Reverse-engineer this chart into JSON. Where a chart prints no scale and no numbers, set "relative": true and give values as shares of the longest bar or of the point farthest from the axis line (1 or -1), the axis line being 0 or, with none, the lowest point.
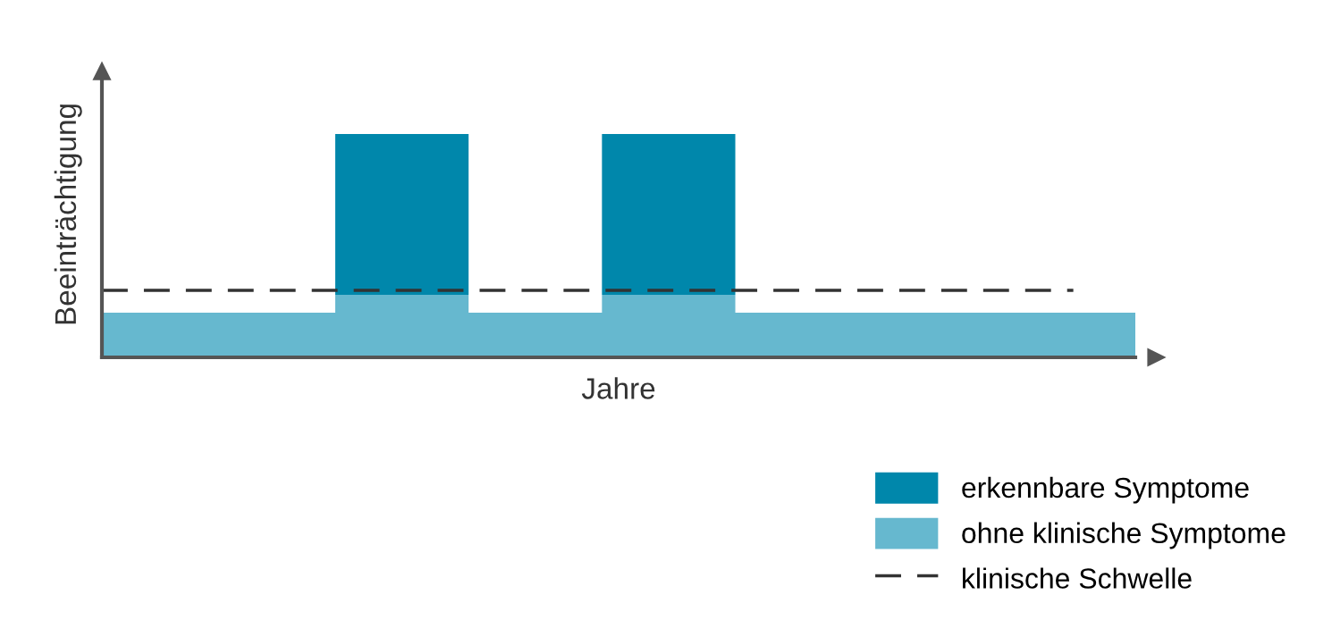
{
  "chart_data": {
    "type": "area",
    "stacked": true,
    "relative": true,
    "xlabel": "Jahre",
    "ylabel": "Beeinträchtigung",
    "categories": [
      null,
      null,
      null,
      null,
      null,
      null,
      null,
      null,
      null,
      null,
      null,
      null,
      null,
      null,
      null,
      null,
      null,
      null,
      null,
      null,
      null,
      null,
      null,
      null,
      null,
      null,
      null,
      null,
      null,
      null,
      null,
      null
    ],
    "series": [
      {
        "name": "ohne klinische Symptome",
        "color": "#66b8cf",
        "values": [
          0.2,
          0.2,
          0.2,
          0.2,
          0.2,
          0.2,
          0.2,
          0.28,
          0.28,
          0.28,
          0.28,
          0.2,
          0.2,
          0.2,
          0.2,
          0.28,
          0.28,
          0.28,
          0.28,
          0.2,
          0.2,
          0.2,
          0.2,
          0.2,
          0.2,
          0.2,
          0.2,
          0.2,
          0.2,
          0.2,
          0.2,
          0.2
        ]
      },
      {
        "name": "erkennbare Symptome",
        "color": "#0087ab",
        "values": [
          0,
          0,
          0,
          0,
          0,
          0,
          0,
          0.72,
          0.72,
          0.72,
          0.72,
          0,
          0,
          0,
          0,
          0.72,
          0.72,
          0.72,
          0.72,
          0,
          0,
          0,
          0,
          0,
          0,
          0,
          0,
          0,
          0,
          0,
          0,
          0
        ]
      }
    ],
    "ref_lines": [
      {
        "axis": "y",
        "value": 0.3,
        "label": "klinische Schwelle",
        "color": "#333333",
        "line_style": "dashed"
      }
    ],
    "legend": "bottom right"
  }
}
